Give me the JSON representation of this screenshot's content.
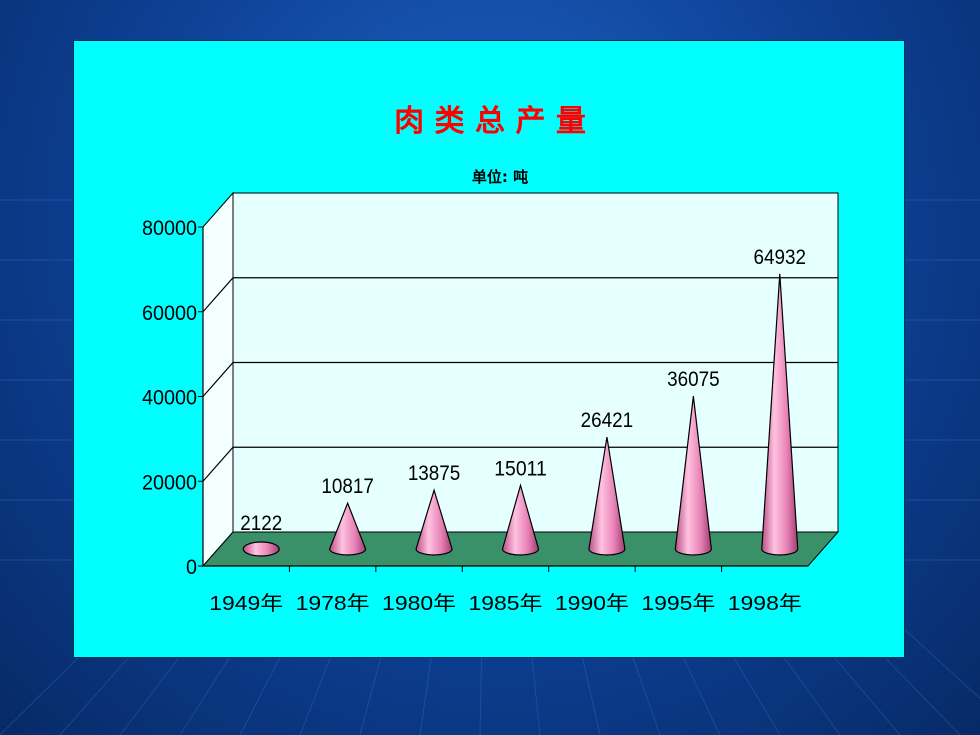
{
  "colors": {
    "background": "#0d3f93",
    "panel": "#00ffff",
    "plot_back": "#e6ffff",
    "floor": "#3a9068",
    "cone": "#e882b6",
    "title": "#ff0000"
  },
  "chart_data": {
    "type": "bar",
    "bar_shape": "cone-3d",
    "title": "肉 类 总 产 量",
    "subtitle": "单位: 吨",
    "categories": [
      "1949年",
      "1978年",
      "1980年",
      "1985年",
      "1990年",
      "1995年",
      "1998年"
    ],
    "values": [
      2122,
      10817,
      13875,
      15011,
      26421,
      36075,
      64932
    ],
    "data_labels": [
      "2122",
      "10817",
      "13875",
      "15011",
      "26421",
      "36075",
      "64932"
    ],
    "ylim": [
      0,
      80000
    ],
    "y_ticks": [
      0,
      20000,
      40000,
      60000,
      80000
    ],
    "y_tick_labels": [
      "0",
      "20000",
      "40000",
      "60000",
      "80000"
    ],
    "grid": true,
    "legend": "none"
  }
}
